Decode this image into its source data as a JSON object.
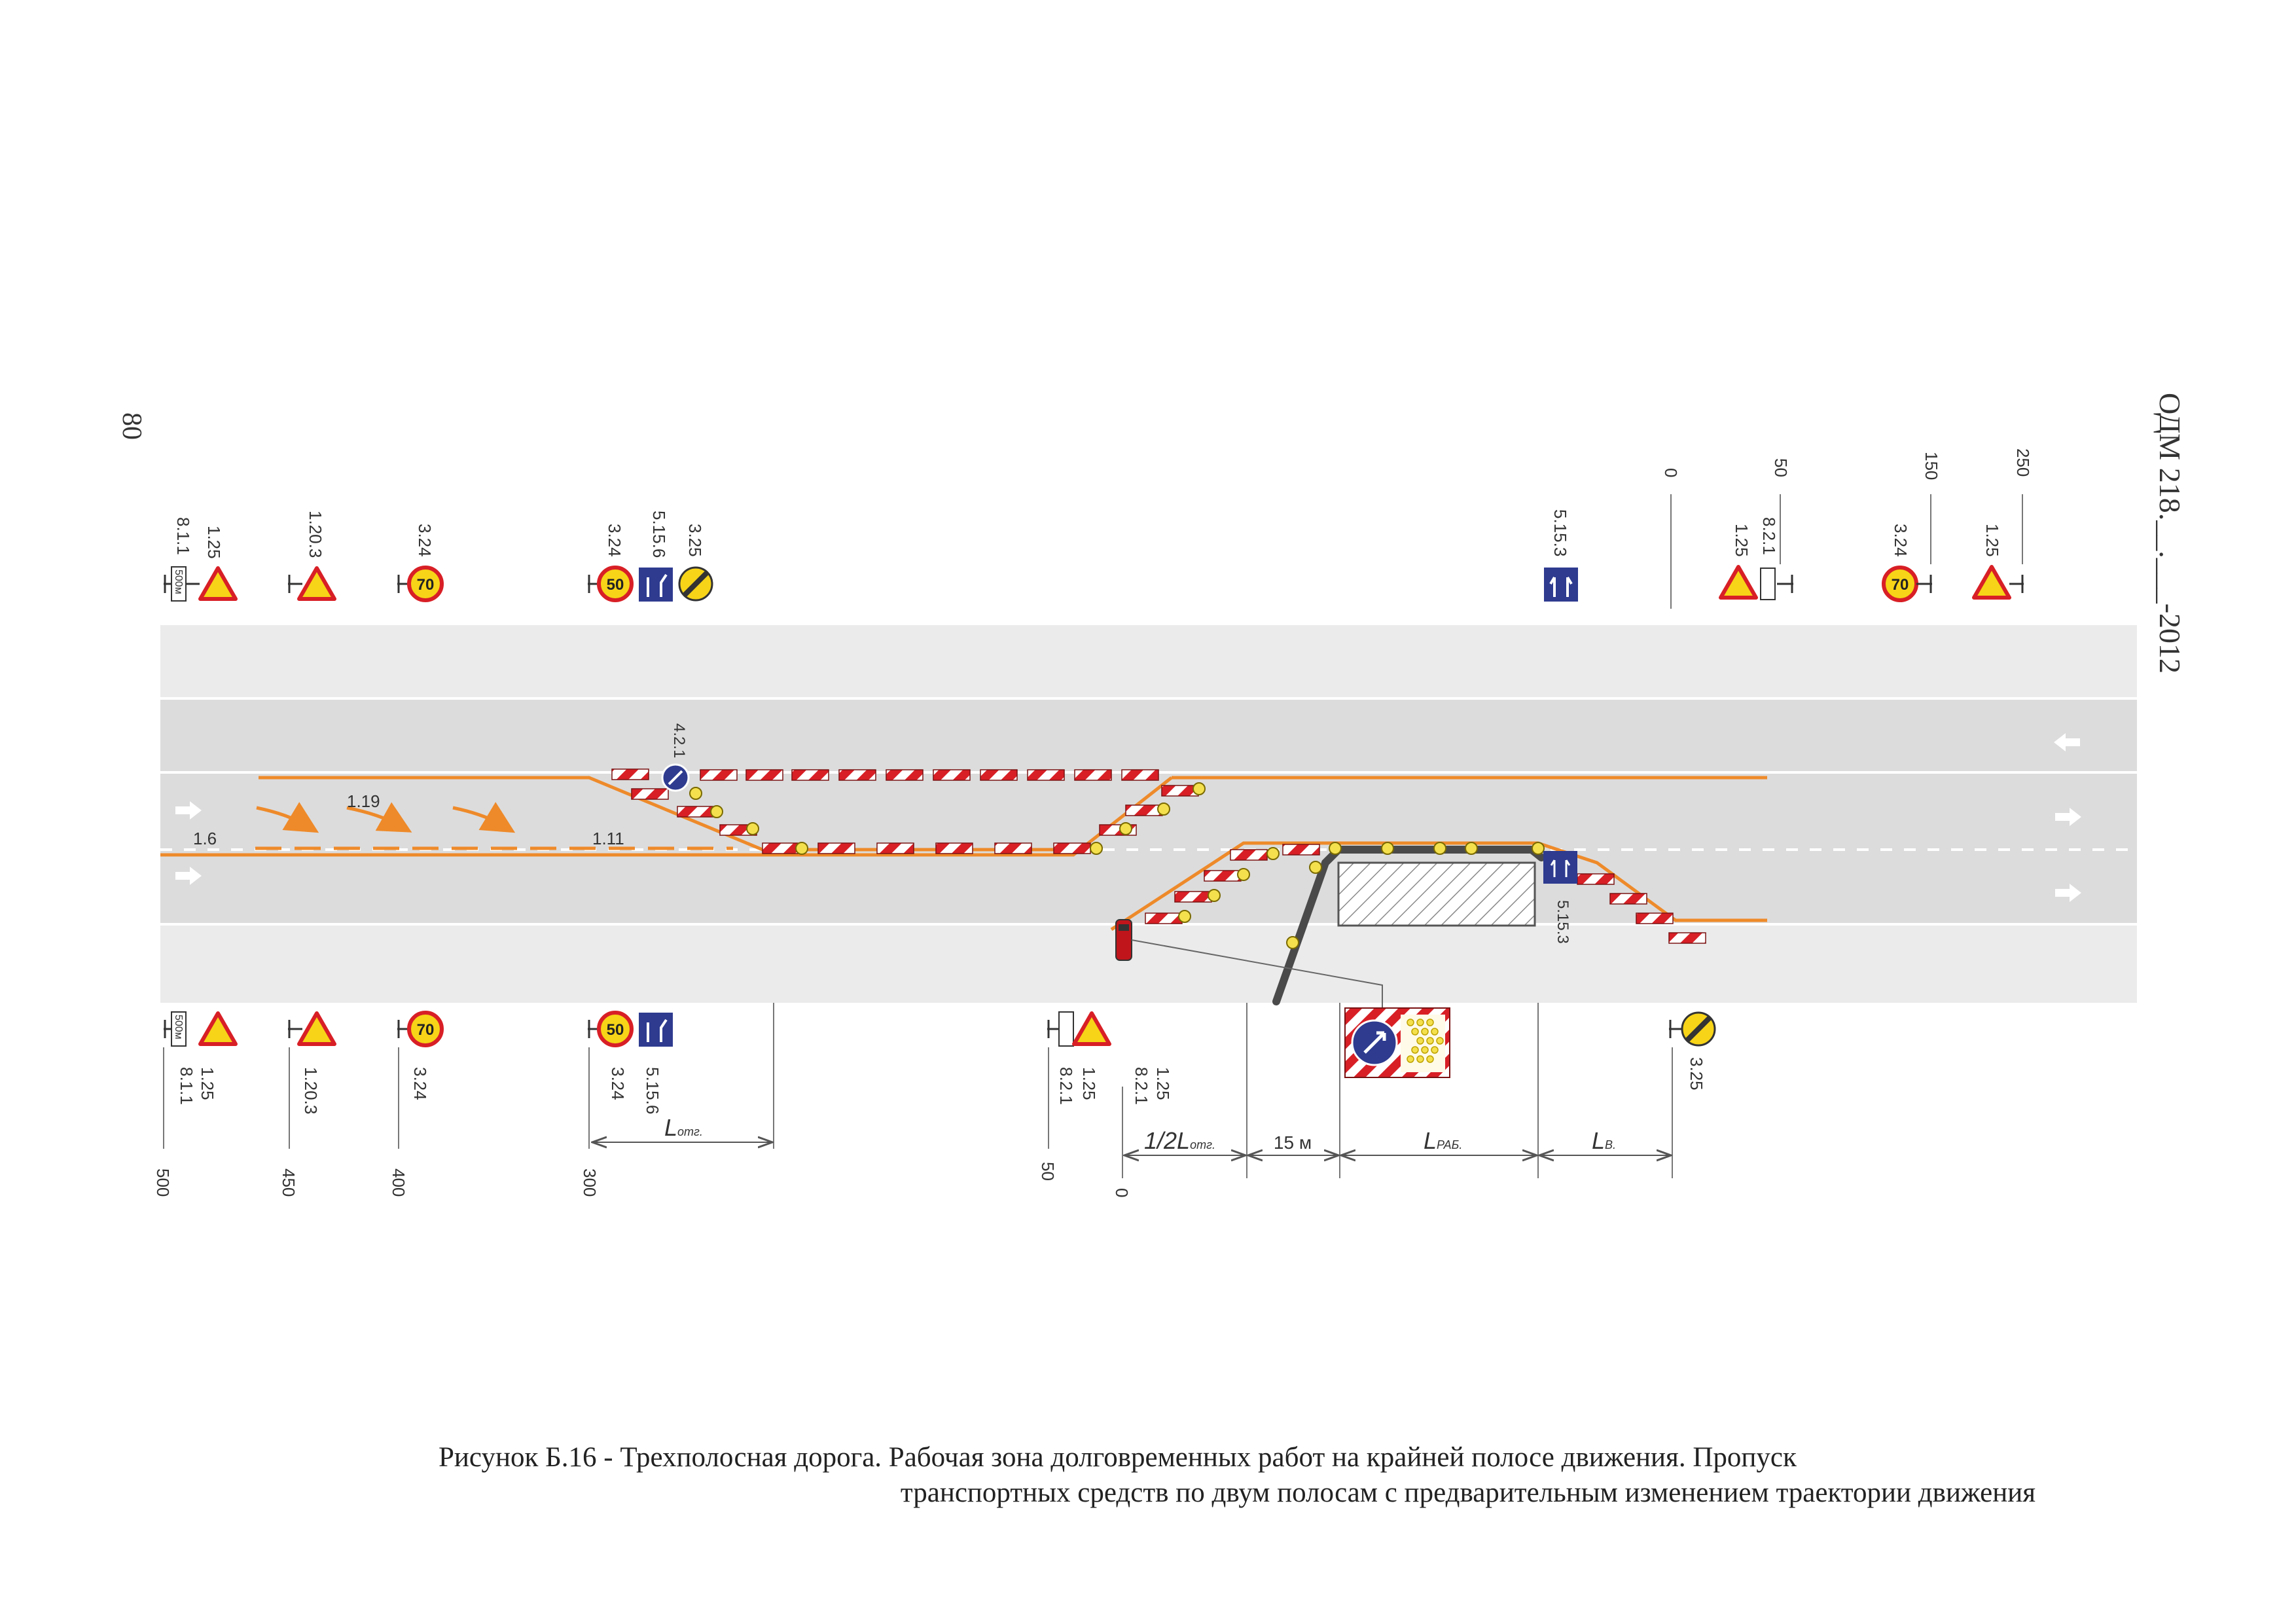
{
  "page": {
    "page_number": "80",
    "document_id": "ОДМ 218.__.___-2012"
  },
  "caption": {
    "line1": "Рисунок Б.16 - Трехполосная дорога. Рабочая зона долговременных работ на крайней полосе движения. Пропуск",
    "line2": "транспортных средств по двум полосам с предварительным изменением траектории движения"
  },
  "markings": {
    "m_1_19": "1.19",
    "m_1_6": "1.6",
    "m_1_11": "1.11"
  },
  "signs_top": [
    {
      "codes": [
        "1.25",
        "8.1.1"
      ],
      "plate": "500м"
    },
    {
      "codes": [
        "1.20.3"
      ]
    },
    {
      "codes": [
        "3.24"
      ],
      "value": "70"
    },
    {
      "codes": [
        "3.24",
        "5.15.6",
        "3.25"
      ],
      "value": "50"
    },
    {
      "codes": [
        "5.15.3"
      ]
    },
    {
      "codes": [
        "1.25",
        "8.2.1"
      ]
    },
    {
      "codes": [
        "3.24"
      ],
      "value": "70"
    },
    {
      "codes": [
        "1.25"
      ]
    }
  ],
  "signs_bottom": [
    {
      "codes": [
        "1.25",
        "8.1.1"
      ],
      "plate": "500м"
    },
    {
      "codes": [
        "1.20.3"
      ]
    },
    {
      "codes": [
        "3.24"
      ],
      "value": "70"
    },
    {
      "codes": [
        "3.24",
        "5.15.6"
      ],
      "value": "50"
    },
    {
      "codes": [
        "1.25",
        "8.2.1"
      ]
    },
    {
      "codes": [
        "3.25"
      ]
    }
  ],
  "onroad_signs": {
    "s_4_2_1": "4.2.1",
    "s_5_15_3": "5.15.3"
  },
  "distances_top": [
    "0",
    "50",
    "150",
    "250"
  ],
  "distances_bottom": [
    "500",
    "450",
    "400",
    "300",
    "50",
    "0"
  ],
  "dimensions": {
    "l_otg_base": "L",
    "l_otg_sub": "отг.",
    "half_l_base": "1/2L",
    "half_l_sub": "отг.",
    "fifteen": "15 м",
    "l_rab_base": "L",
    "l_rab_sub": "РАБ.",
    "l_v_base": "L",
    "l_v_sub": "В."
  },
  "colors": {
    "road": "#dcdcdc",
    "shoulder": "#ebebeb",
    "marking_orange": "#ee8a2a",
    "barrier_red": "#d81f26",
    "sign_blue": "#2e3b8f",
    "sign_yellow": "#f7d417",
    "lamp_yellow": "#f4e04d"
  }
}
